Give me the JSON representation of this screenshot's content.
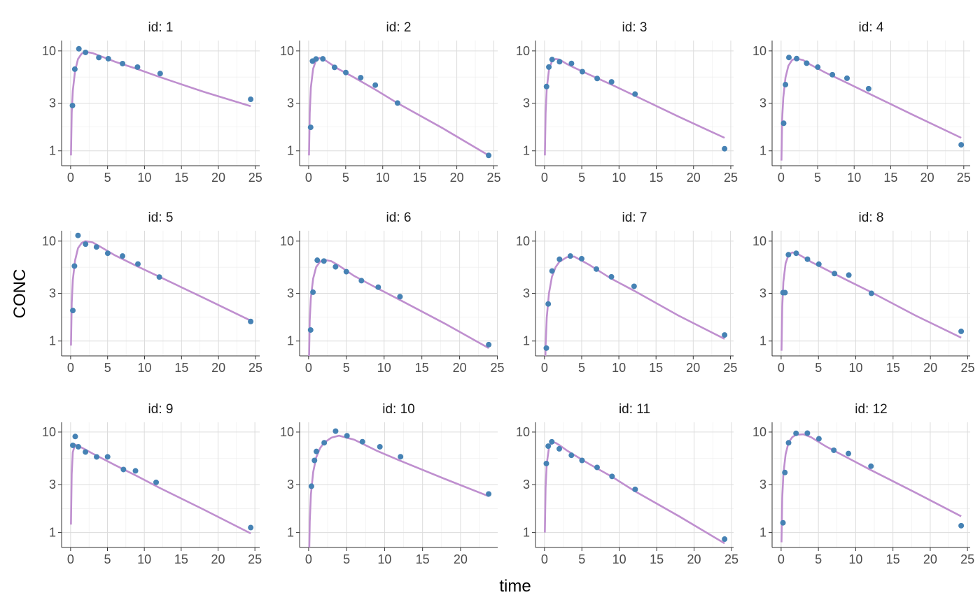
{
  "axis_labels": {
    "x": "time",
    "y": "CONC"
  },
  "chart_data": [
    {
      "type": "scatter",
      "title": "id: 1",
      "xlim": [
        -1.22,
        25.59
      ],
      "xticks": [
        0,
        5,
        10,
        15,
        20,
        25
      ],
      "ylim": [
        0.71,
        12.7
      ],
      "yticks": [
        1,
        3,
        10
      ],
      "log_y": true,
      "grid": true,
      "series": [
        {
          "kind": "points",
          "color": "#4682b4",
          "x": [
            0.25,
            0.57,
            1.12,
            2.02,
            3.82,
            5.1,
            7.03,
            9.05,
            12.12,
            24.37
          ],
          "values": [
            2.84,
            6.57,
            10.5,
            9.66,
            8.58,
            8.36,
            7.47,
            6.89,
            5.94,
            3.28
          ]
        },
        {
          "kind": "line",
          "color": "#bf8fcf",
          "x": [
            0.05,
            0.15,
            0.3,
            0.6,
            1,
            1.5,
            2,
            3,
            4,
            6,
            9,
            12,
            18,
            24.37
          ],
          "values": [
            0.9,
            2.4,
            4.0,
            6.3,
            8.3,
            9.4,
            9.8,
            9.5,
            8.9,
            7.8,
            6.6,
            5.5,
            3.9,
            2.8
          ]
        }
      ]
    },
    {
      "type": "scatter",
      "title": "id: 2",
      "xlim": [
        -1.22,
        25.52
      ],
      "xticks": [
        0,
        5,
        10,
        15,
        20,
        25
      ],
      "ylim": [
        0.71,
        12.7
      ],
      "yticks": [
        1,
        3,
        10
      ],
      "log_y": true,
      "grid": true,
      "series": [
        {
          "kind": "points",
          "color": "#4682b4",
          "x": [
            0.27,
            0.52,
            1.0,
            1.92,
            3.5,
            5.02,
            7.03,
            9.0,
            12.0,
            24.3
          ],
          "values": [
            1.72,
            7.91,
            8.31,
            8.33,
            6.85,
            6.08,
            5.4,
            4.55,
            3.01,
            0.9
          ]
        },
        {
          "kind": "line",
          "color": "#bf8fcf",
          "x": [
            0.05,
            0.15,
            0.3,
            0.6,
            1,
            1.5,
            2,
            3,
            4,
            6,
            9,
            12,
            18,
            24.3
          ],
          "values": [
            0.9,
            2.4,
            4.3,
            6.6,
            8.1,
            8.5,
            8.3,
            7.4,
            6.6,
            5.5,
            4.1,
            3.0,
            1.7,
            0.9
          ]
        }
      ]
    },
    {
      "type": "scatter",
      "title": "id: 3",
      "xlim": [
        -1.21,
        25.38
      ],
      "xticks": [
        0,
        5,
        10,
        15,
        20,
        25
      ],
      "ylim": [
        0.71,
        12.7
      ],
      "yticks": [
        1,
        3,
        10
      ],
      "log_y": true,
      "grid": true,
      "series": [
        {
          "kind": "points",
          "color": "#4682b4",
          "x": [
            0.27,
            0.58,
            1.02,
            2.02,
            3.62,
            5.08,
            7.07,
            9.0,
            12.15,
            24.17
          ],
          "values": [
            4.4,
            6.9,
            8.2,
            7.8,
            7.5,
            6.2,
            5.3,
            4.9,
            3.7,
            1.05
          ]
        },
        {
          "kind": "line",
          "color": "#bf8fcf",
          "x": [
            0.05,
            0.15,
            0.3,
            0.6,
            1,
            1.5,
            2,
            3,
            4,
            6,
            9,
            12,
            18,
            24.17
          ],
          "values": [
            0.9,
            2.4,
            4.2,
            6.5,
            7.9,
            8.3,
            8.2,
            7.4,
            6.8,
            5.8,
            4.6,
            3.6,
            2.2,
            1.35
          ]
        }
      ]
    },
    {
      "type": "scatter",
      "title": "id: 4",
      "xlim": [
        -1.23,
        25.88
      ],
      "xticks": [
        0,
        5,
        10,
        15,
        20,
        25
      ],
      "ylim": [
        0.71,
        12.7
      ],
      "yticks": [
        1,
        3,
        10
      ],
      "log_y": true,
      "grid": true,
      "series": [
        {
          "kind": "points",
          "color": "#4682b4",
          "x": [
            0.35,
            0.6,
            1.07,
            2.13,
            3.5,
            5.02,
            7.02,
            9.02,
            11.98,
            24.65
          ],
          "values": [
            1.89,
            4.6,
            8.6,
            8.38,
            7.54,
            6.88,
            5.78,
            5.33,
            4.19,
            1.15
          ]
        },
        {
          "kind": "line",
          "color": "#bf8fcf",
          "x": [
            0.05,
            0.15,
            0.3,
            0.6,
            1,
            1.5,
            2,
            3,
            4,
            6,
            9,
            12,
            18,
            24.65
          ],
          "values": [
            0.8,
            2.1,
            3.4,
            5.4,
            7.1,
            8.1,
            8.4,
            8.1,
            7.3,
            6.1,
            4.8,
            3.75,
            2.3,
            1.35
          ]
        }
      ]
    },
    {
      "type": "scatter",
      "title": "id: 5",
      "xlim": [
        -1.22,
        25.57
      ],
      "xticks": [
        0,
        5,
        10,
        15,
        20,
        25
      ],
      "ylim": [
        0.71,
        12.7
      ],
      "yticks": [
        1,
        3,
        10
      ],
      "log_y": true,
      "grid": true,
      "series": [
        {
          "kind": "points",
          "color": "#4682b4",
          "x": [
            0.3,
            0.52,
            1.0,
            2.02,
            3.5,
            5.02,
            7.02,
            9.1,
            12.0,
            24.35
          ],
          "values": [
            2.02,
            5.63,
            11.4,
            9.33,
            8.74,
            7.56,
            7.09,
            5.9,
            4.37,
            1.57
          ]
        },
        {
          "kind": "line",
          "color": "#bf8fcf",
          "x": [
            0.05,
            0.15,
            0.3,
            0.6,
            1,
            1.5,
            2,
            3,
            4,
            6,
            9,
            12,
            18,
            24.35
          ],
          "values": [
            0.9,
            2.4,
            4.1,
            6.4,
            8.5,
            9.6,
            10,
            9.7,
            8.8,
            7.2,
            5.6,
            4.4,
            2.7,
            1.6
          ]
        }
      ]
    },
    {
      "type": "scatter",
      "title": "id: 6",
      "xlim": [
        -1.19,
        25.04
      ],
      "xticks": [
        0,
        5,
        10,
        15,
        20,
        25
      ],
      "ylim": [
        0.71,
        12.7
      ],
      "yticks": [
        1,
        3,
        10
      ],
      "log_y": true,
      "grid": true,
      "series": [
        {
          "kind": "points",
          "color": "#4682b4",
          "x": [
            0.27,
            0.58,
            1.15,
            2.03,
            3.57,
            5.0,
            7.0,
            9.22,
            12.1,
            23.85
          ],
          "values": [
            1.29,
            3.08,
            6.44,
            6.32,
            5.53,
            4.94,
            4.02,
            3.46,
            2.78,
            0.92
          ]
        },
        {
          "kind": "line",
          "color": "#bf8fcf",
          "x": [
            0.05,
            0.15,
            0.3,
            0.6,
            1,
            1.5,
            2,
            3,
            4,
            6,
            9,
            12,
            18,
            23.85
          ],
          "values": [
            0.6,
            1.6,
            2.7,
            4.2,
            5.5,
            6.2,
            6.5,
            6.3,
            5.7,
            4.5,
            3.4,
            2.6,
            1.5,
            0.85
          ]
        }
      ]
    },
    {
      "type": "scatter",
      "title": "id: 7",
      "xlim": [
        -1.21,
        25.43
      ],
      "xticks": [
        0,
        5,
        10,
        15,
        20,
        25
      ],
      "ylim": [
        0.71,
        12.7
      ],
      "yticks": [
        1,
        3,
        10
      ],
      "log_y": true,
      "grid": true,
      "series": [
        {
          "kind": "points",
          "color": "#4682b4",
          "x": [
            0.25,
            0.5,
            1.02,
            2.02,
            3.48,
            5.0,
            6.98,
            9.0,
            12.05,
            24.22
          ],
          "values": [
            0.85,
            2.35,
            5.02,
            6.58,
            7.09,
            6.66,
            5.25,
            4.39,
            3.53,
            1.15
          ]
        },
        {
          "kind": "line",
          "color": "#bf8fcf",
          "x": [
            0.05,
            0.15,
            0.3,
            0.6,
            1,
            1.5,
            2,
            3,
            4,
            6,
            9,
            12,
            18,
            24.22
          ],
          "values": [
            0.35,
            0.9,
            1.7,
            3.0,
            4.4,
            5.5,
            6.2,
            6.9,
            7.0,
            5.8,
            4.2,
            3.2,
            1.8,
            1.05
          ]
        }
      ]
    },
    {
      "type": "scatter",
      "title": "id: 8",
      "xlim": [
        -1.21,
        25.33
      ],
      "xticks": [
        0,
        5,
        10,
        15,
        20,
        25
      ],
      "ylim": [
        0.71,
        12.7
      ],
      "yticks": [
        1,
        3,
        10
      ],
      "log_y": true,
      "grid": true,
      "series": [
        {
          "kind": "points",
          "color": "#4682b4",
          "x": [
            0.25,
            0.52,
            0.98,
            2.02,
            3.53,
            5.05,
            7.15,
            9.07,
            12.1,
            24.12
          ],
          "values": [
            3.05,
            3.05,
            7.31,
            7.56,
            6.59,
            5.88,
            4.73,
            4.57,
            3.0,
            1.25
          ]
        },
        {
          "kind": "line",
          "color": "#bf8fcf",
          "x": [
            0.05,
            0.15,
            0.3,
            0.6,
            1,
            1.5,
            2,
            3,
            4,
            6,
            9,
            12,
            18,
            24.12
          ],
          "values": [
            0.8,
            2.2,
            3.9,
            6.0,
            7.3,
            7.7,
            7.6,
            6.9,
            6.2,
            5.2,
            4.0,
            3.1,
            1.8,
            1.08
          ]
        }
      ]
    },
    {
      "type": "scatter",
      "title": "id: 9",
      "xlim": [
        -1.22,
        25.65
      ],
      "xticks": [
        0,
        5,
        10,
        15,
        20,
        25
      ],
      "ylim": [
        0.71,
        12.5
      ],
      "yticks": [
        1,
        3,
        10
      ],
      "log_y": true,
      "grid": true,
      "series": [
        {
          "kind": "points",
          "color": "#4682b4",
          "x": [
            0.3,
            0.63,
            1.05,
            2.02,
            3.53,
            5.02,
            7.17,
            8.8,
            11.6,
            24.43
          ],
          "values": [
            7.37,
            9.03,
            7.14,
            6.33,
            5.66,
            5.67,
            4.24,
            4.11,
            3.16,
            1.12
          ]
        },
        {
          "kind": "line",
          "color": "#bf8fcf",
          "x": [
            0.05,
            0.15,
            0.3,
            0.6,
            1,
            1.5,
            2,
            3,
            4,
            6,
            9,
            12,
            18,
            24.43
          ],
          "values": [
            1.2,
            3.8,
            6.3,
            7.5,
            7.3,
            7.0,
            6.7,
            6.1,
            5.6,
            4.7,
            3.65,
            2.8,
            1.7,
            0.98
          ]
        }
      ]
    },
    {
      "type": "scatter",
      "title": "id: 10",
      "xlim": [
        -1.19,
        24.89
      ],
      "xticks": [
        0,
        5,
        10,
        15,
        20
      ],
      "ylim": [
        0.71,
        12.5
      ],
      "yticks": [
        1,
        3,
        10
      ],
      "log_y": true,
      "grid": true,
      "series": [
        {
          "kind": "points",
          "color": "#4682b4",
          "x": [
            0.37,
            0.77,
            1.02,
            2.05,
            3.55,
            5.05,
            7.08,
            9.38,
            12.1,
            23.7
          ],
          "values": [
            2.89,
            5.22,
            6.41,
            7.83,
            10.21,
            9.18,
            8.02,
            7.14,
            5.68,
            2.42
          ]
        },
        {
          "kind": "line",
          "color": "#bf8fcf",
          "x": [
            0.05,
            0.15,
            0.3,
            0.6,
            1,
            1.5,
            2,
            3,
            4,
            6,
            9,
            12,
            18,
            23.7
          ],
          "values": [
            0.5,
            1.3,
            2.4,
            4.0,
            5.6,
            6.9,
            7.8,
            8.8,
            9.2,
            8.4,
            6.5,
            5.2,
            3.4,
            2.3
          ]
        }
      ]
    },
    {
      "type": "scatter",
      "title": "id: 11",
      "xlim": [
        -1.2,
        25.28
      ],
      "xticks": [
        0,
        5,
        10,
        15,
        20,
        25
      ],
      "ylim": [
        0.71,
        12.5
      ],
      "yticks": [
        1,
        3,
        10
      ],
      "log_y": true,
      "grid": true,
      "series": [
        {
          "kind": "points",
          "color": "#4682b4",
          "x": [
            0.25,
            0.5,
            0.98,
            1.98,
            3.6,
            5.02,
            7.03,
            9.03,
            12.12,
            24.08
          ],
          "values": [
            4.86,
            7.24,
            8.0,
            6.81,
            5.87,
            5.22,
            4.45,
            3.62,
            2.69,
            0.86
          ]
        },
        {
          "kind": "line",
          "color": "#bf8fcf",
          "x": [
            0.05,
            0.15,
            0.3,
            0.6,
            1,
            1.5,
            2,
            3,
            4,
            6,
            9,
            12,
            18,
            24.08
          ],
          "values": [
            1.0,
            2.8,
            4.8,
            7.0,
            8.0,
            7.8,
            7.4,
            6.55,
            5.9,
            4.8,
            3.6,
            2.6,
            1.45,
            0.78
          ]
        }
      ]
    },
    {
      "type": "scatter",
      "title": "id: 12",
      "xlim": [
        -1.21,
        25.36
      ],
      "xticks": [
        0,
        5,
        10,
        15,
        20,
        25
      ],
      "ylim": [
        0.71,
        12.5
      ],
      "yticks": [
        1,
        3,
        10
      ],
      "log_y": true,
      "grid": true,
      "series": [
        {
          "kind": "points",
          "color": "#4682b4",
          "x": [
            0.25,
            0.5,
            1.0,
            2.0,
            3.52,
            5.07,
            7.07,
            9.03,
            12.05,
            24.15
          ],
          "values": [
            1.25,
            3.96,
            7.82,
            9.72,
            9.75,
            8.57,
            6.59,
            6.11,
            4.57,
            1.17
          ]
        },
        {
          "kind": "line",
          "color": "#bf8fcf",
          "x": [
            0.05,
            0.15,
            0.3,
            0.6,
            1,
            1.5,
            2,
            3,
            4,
            6,
            9,
            12,
            18,
            24.15
          ],
          "values": [
            0.8,
            2.2,
            3.8,
            6.0,
            7.9,
            8.9,
            9.4,
            9.5,
            8.9,
            7.2,
            5.5,
            4.2,
            2.5,
            1.45
          ]
        }
      ]
    }
  ]
}
